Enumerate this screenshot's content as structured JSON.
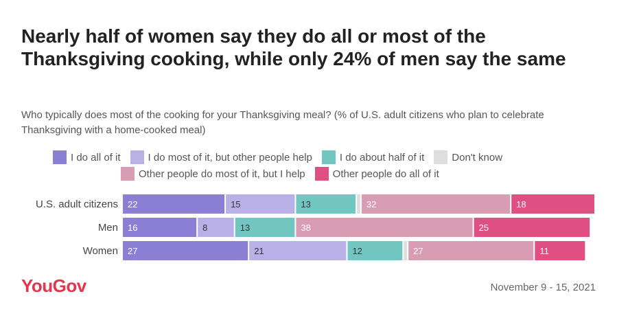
{
  "title": "Nearly half of women say they do all or most of the Thanksgiving cooking, while only 24% of men say the same",
  "subtitle": "Who typically does most of the cooking for your Thanksgiving meal? (% of U.S. adult citizens who plan to celebrate Thanksgiving with a home-cooked meal)",
  "legend": {
    "row1": [
      {
        "label": "I do all of it",
        "color": "#8a7fd4"
      },
      {
        "label": "I do most of it, but other people help",
        "color": "#b8b0e6"
      },
      {
        "label": "I do about half of it",
        "color": "#72c6c1"
      },
      {
        "label": "Don't know",
        "color": "#dedede"
      }
    ],
    "row2": [
      {
        "label": "Other people do most of it, but I help",
        "color": "#d89db3"
      },
      {
        "label": "Other people do all of it",
        "color": "#df4f82"
      }
    ]
  },
  "chart_data": {
    "type": "bar",
    "orientation": "horizontal",
    "stacked": true,
    "title": "Nearly half of women say they do all or most of the Thanksgiving cooking, while only 24% of men say the same",
    "categories": [
      "U.S. adult citizens",
      "Men",
      "Women"
    ],
    "series": [
      {
        "name": "I do all of it",
        "color": "#8a7fd4",
        "values": [
          22,
          16,
          27
        ]
      },
      {
        "name": "I do most of it, but other people help",
        "color": "#b8b0e6",
        "values": [
          15,
          8,
          21
        ]
      },
      {
        "name": "I do about half of it",
        "color": "#72c6c1",
        "values": [
          13,
          13,
          12
        ]
      },
      {
        "name": "Don't know",
        "color": "#dedede",
        "values": [
          1,
          0,
          1
        ]
      },
      {
        "name": "Other people do most of it, but I help",
        "color": "#d89db3",
        "values": [
          32,
          38,
          27
        ]
      },
      {
        "name": "Other people do all of it",
        "color": "#df4f82",
        "values": [
          18,
          25,
          11
        ]
      }
    ],
    "value_labels": [
      [
        "22",
        "15",
        "13",
        "",
        "32",
        "18"
      ],
      [
        "16",
        "8",
        "13",
        "",
        "38",
        "25"
      ],
      [
        "27",
        "21",
        "12",
        "",
        "27",
        "11"
      ]
    ],
    "xlim": [
      0,
      101
    ],
    "unit": "%"
  },
  "footer": {
    "brand": "YouGov",
    "date": "November 9 - 15, 2021"
  }
}
